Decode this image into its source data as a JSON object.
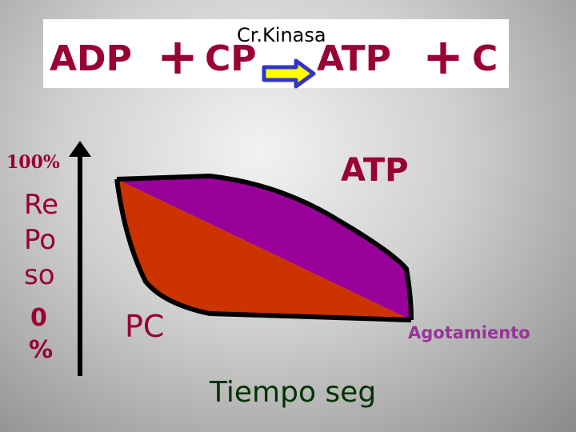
{
  "equation": {
    "enzyme": "Cr.Kinasa",
    "reactant_1": "ADP",
    "plus_1": "+",
    "reactant_2": "CP",
    "product_1": "ATP",
    "plus_2": "+",
    "product_2": "C"
  },
  "axis": {
    "y_top_label": "100%",
    "y_title_lines": [
      "Re",
      "Po",
      "so"
    ],
    "y_bottom_lines": [
      "0",
      "%"
    ],
    "x_title": "Tiempo seg"
  },
  "regions": {
    "atp_label": "ATP",
    "pc_label": "PC",
    "end_label": "Agotamiento"
  },
  "colors": {
    "equation_text": "#990033",
    "atp_region": "#990099",
    "pc_region": "#cc3300",
    "axis_text": "#990033",
    "end_label": "#993399",
    "x_title": "#003300",
    "arrow_fill": "#ffff00",
    "arrow_stroke": "#3333cc"
  }
}
